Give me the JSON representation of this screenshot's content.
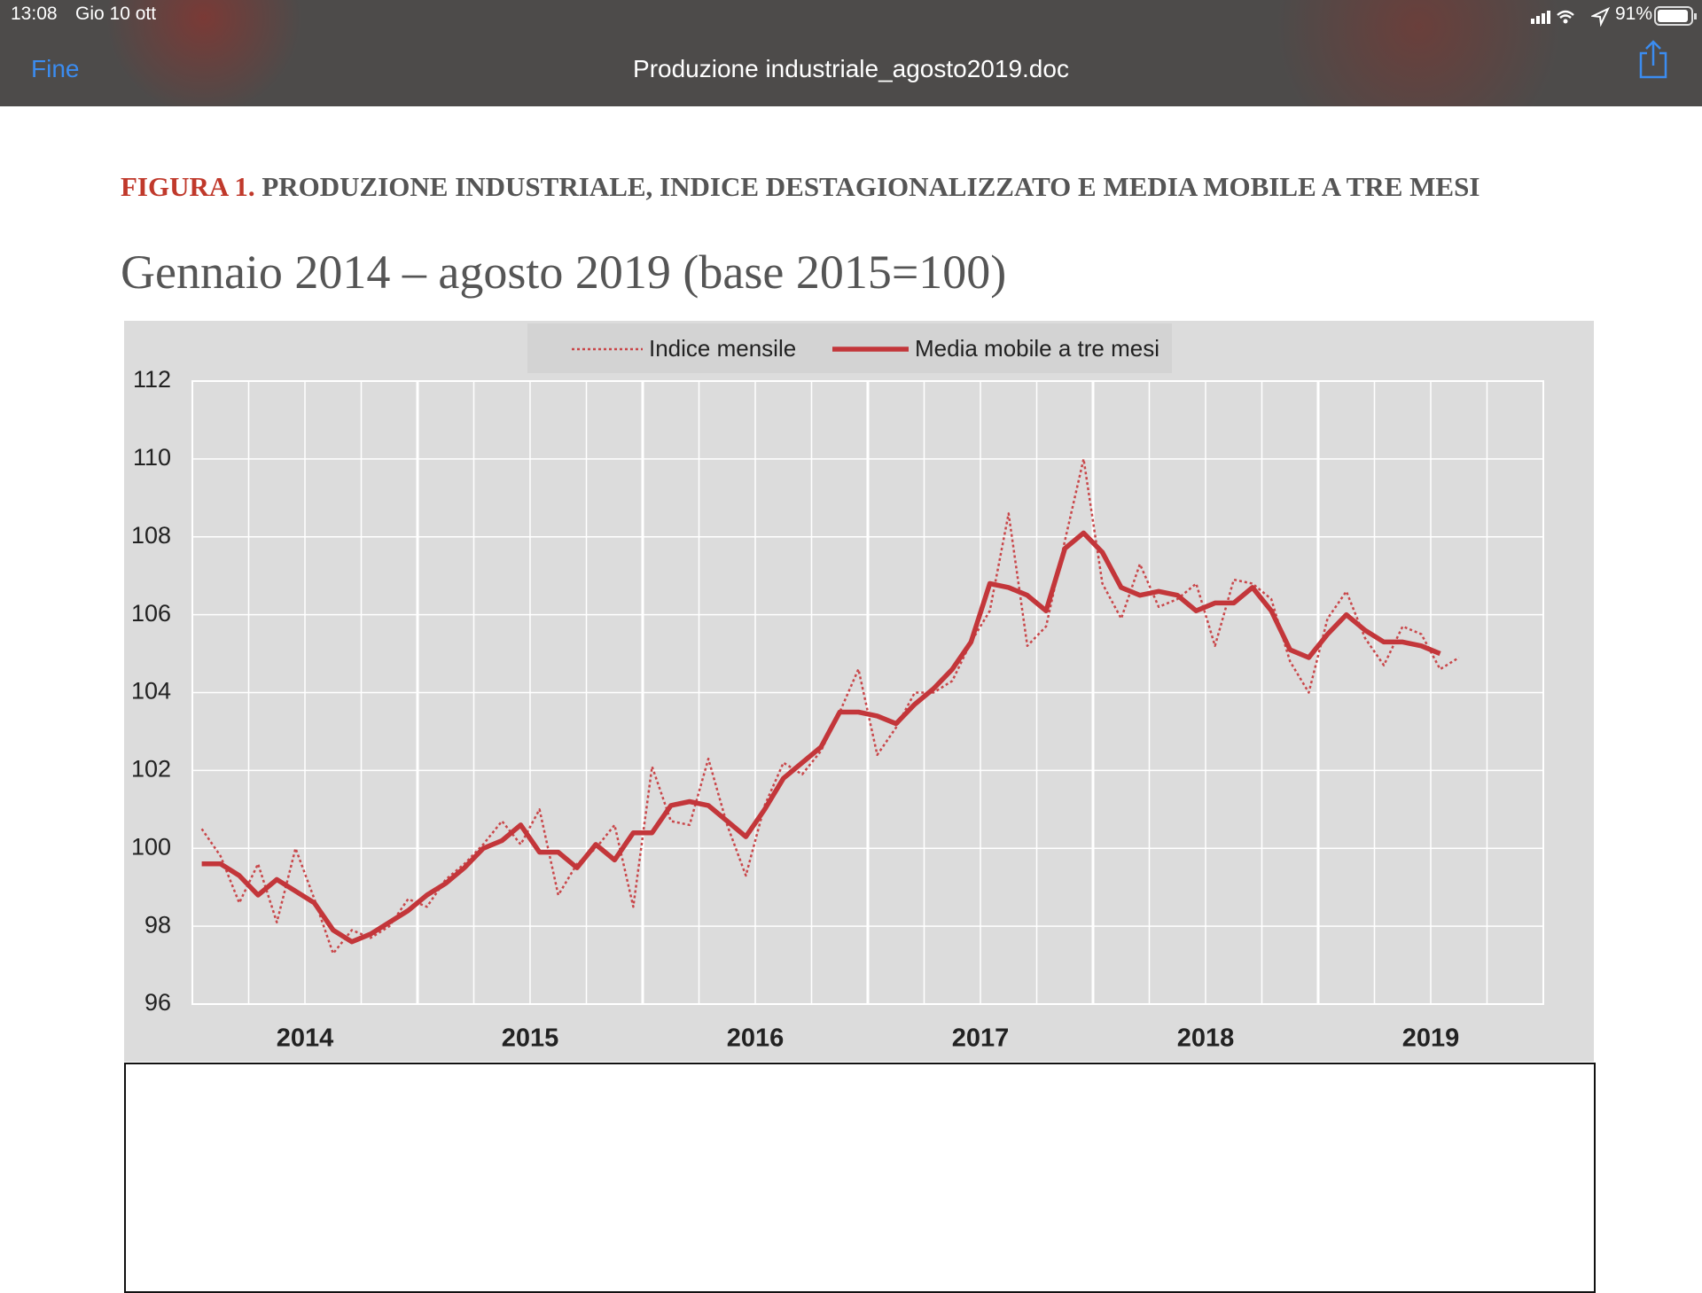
{
  "status_bar": {
    "time": "13:08",
    "date": "Gio 10 ott",
    "battery": "91%"
  },
  "nav_bar": {
    "back": "Fine",
    "title": "Produzione industriale_agosto2019.doc"
  },
  "document": {
    "figure_label": "FIGURA 1.",
    "figure_title": "PRODUZIONE INDUSTRIALE, INDICE DESTAGIONALIZZATO E MEDIA MOBILE A TRE MESI",
    "subtitle": "Gennaio 2014 – agosto 2019 (base 2015=100)"
  },
  "chart_data": {
    "type": "line",
    "categories": [
      "2014",
      null,
      null,
      null,
      null,
      null,
      null,
      null,
      null,
      null,
      null,
      null,
      "2015",
      null,
      null,
      null,
      null,
      null,
      null,
      null,
      null,
      null,
      null,
      null,
      "2016",
      null,
      null,
      null,
      null,
      null,
      null,
      null,
      null,
      null,
      null,
      null,
      "2017",
      null,
      null,
      null,
      null,
      null,
      null,
      null,
      null,
      null,
      null,
      null,
      "2018",
      null,
      null,
      null,
      null,
      null,
      null,
      null,
      null,
      null,
      null,
      null,
      "2019",
      null,
      null,
      null,
      null,
      null,
      null,
      null
    ],
    "series": [
      {
        "name": "Indice mensile",
        "color": "#c9474a",
        "style": "dotted",
        "values": [
          100.5,
          99.8,
          98.6,
          99.6,
          98.1,
          100.0,
          98.7,
          97.3,
          97.9,
          97.7,
          98.0,
          98.7,
          98.5,
          99.2,
          99.6,
          100.1,
          100.7,
          100.1,
          101.0,
          98.8,
          99.6,
          100.0,
          100.6,
          98.5,
          102.1,
          100.7,
          100.6,
          102.3,
          100.6,
          99.3,
          101.1,
          102.2,
          101.9,
          102.5,
          103.5,
          104.6,
          102.4,
          103.1,
          104.0,
          104.0,
          104.3,
          105.3,
          106.1,
          108.6,
          105.2,
          105.7,
          107.9,
          110.0,
          106.8,
          105.9,
          107.3,
          106.2,
          106.4,
          106.8,
          105.2,
          106.9,
          106.8,
          106.4,
          104.8,
          104.0,
          105.9,
          106.6,
          105.4,
          104.7,
          105.7,
          105.5,
          104.6,
          104.9
        ]
      },
      {
        "name": "Media mobile a tre mesi",
        "color": "#c3363a",
        "style": "solid",
        "values": [
          99.6,
          99.6,
          99.3,
          98.8,
          99.2,
          98.9,
          98.6,
          97.9,
          97.6,
          97.8,
          98.1,
          98.4,
          98.8,
          99.1,
          99.5,
          100.0,
          100.2,
          100.6,
          99.9,
          99.9,
          99.5,
          100.1,
          99.7,
          100.4,
          100.4,
          101.1,
          101.2,
          101.1,
          100.7,
          100.3,
          101.0,
          101.8,
          102.2,
          102.6,
          103.5,
          103.5,
          103.4,
          103.2,
          103.7,
          104.1,
          104.6,
          105.3,
          106.8,
          106.7,
          106.5,
          106.1,
          107.7,
          108.1,
          107.6,
          106.7,
          106.5,
          106.6,
          106.5,
          106.1,
          106.3,
          106.3,
          106.7,
          106.1,
          105.1,
          104.9,
          105.5,
          106.0,
          105.6,
          105.3,
          105.3,
          105.2,
          105.0,
          null
        ]
      }
    ],
    "ylim": [
      96,
      112
    ],
    "yticks": [
      96,
      98,
      100,
      102,
      104,
      106,
      108,
      110,
      112
    ],
    "grid": true,
    "legend": "top"
  }
}
